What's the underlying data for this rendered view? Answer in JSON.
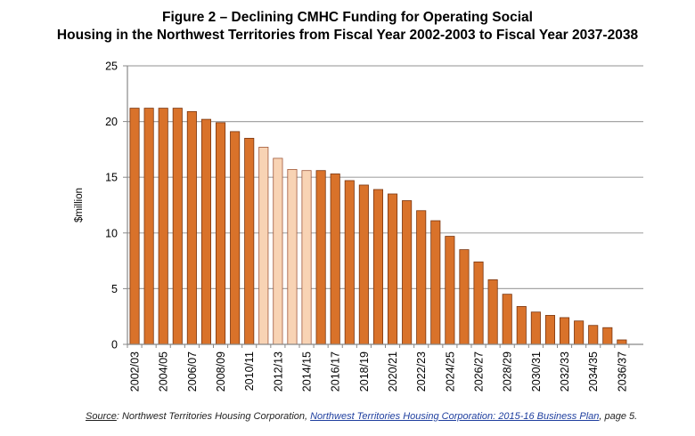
{
  "figure": {
    "title_line1": "Figure 2 – Declining CMHC Funding for Operating Social",
    "title_line2": "Housing in the Northwest Territories from Fiscal Year 2002-2003 to Fiscal Year 2037-2038"
  },
  "source": {
    "label": "Source",
    "colon": ":",
    "org": " Northwest Territories Housing Corporation, ",
    "doc_title": "Northwest Territories Housing Corporation: 2015-16 Business Plan",
    "page": ", page 5."
  },
  "colors": {
    "bar": "#d9722a",
    "bar_stroke": "#7a3610",
    "bar_highlight": "#f8d3b4",
    "bar_highlight_stroke": "#a0583a",
    "grid": "#a6a6a6",
    "axis": "#888888"
  },
  "chart_data": {
    "type": "bar",
    "title": "",
    "xlabel": "",
    "ylabel": "$million",
    "ylim": [
      0,
      25
    ],
    "yticks": [
      0,
      5,
      10,
      15,
      20,
      25
    ],
    "grid": true,
    "legend": "none",
    "categories": [
      "2002/03",
      "2003/04",
      "2004/05",
      "2005/06",
      "2006/07",
      "2007/08",
      "2008/09",
      "2009/10",
      "2010/11",
      "2011/12",
      "2012/13",
      "2013/14",
      "2014/15",
      "2015/16",
      "2016/17",
      "2017/18",
      "2018/19",
      "2019/20",
      "2020/21",
      "2021/22",
      "2022/23",
      "2023/24",
      "2024/25",
      "2025/26",
      "2026/27",
      "2027/28",
      "2028/29",
      "2029/30",
      "2030/31",
      "2031/32",
      "2032/33",
      "2033/34",
      "2034/35",
      "2035/36",
      "2036/37",
      "2037/38"
    ],
    "tick_labels": [
      "2002/03",
      "2004/05",
      "2006/07",
      "2008/09",
      "2010/11",
      "2012/13",
      "2014/15",
      "2016/17",
      "2018/19",
      "2020/21",
      "2022/23",
      "2024/25",
      "2026/27",
      "2028/29",
      "2030/31",
      "2032/33",
      "2034/35",
      "2036/37"
    ],
    "values": [
      21.2,
      21.2,
      21.2,
      21.2,
      20.9,
      20.2,
      19.9,
      19.1,
      18.5,
      17.7,
      16.7,
      15.7,
      15.6,
      15.6,
      15.3,
      14.7,
      14.3,
      13.9,
      13.5,
      12.9,
      12.0,
      11.1,
      9.7,
      8.5,
      7.4,
      5.8,
      4.5,
      3.4,
      2.9,
      2.6,
      2.4,
      2.1,
      1.7,
      1.5,
      0.4,
      0.0
    ],
    "highlighted": [
      "2011/12",
      "2012/13",
      "2013/14",
      "2014/15"
    ]
  }
}
